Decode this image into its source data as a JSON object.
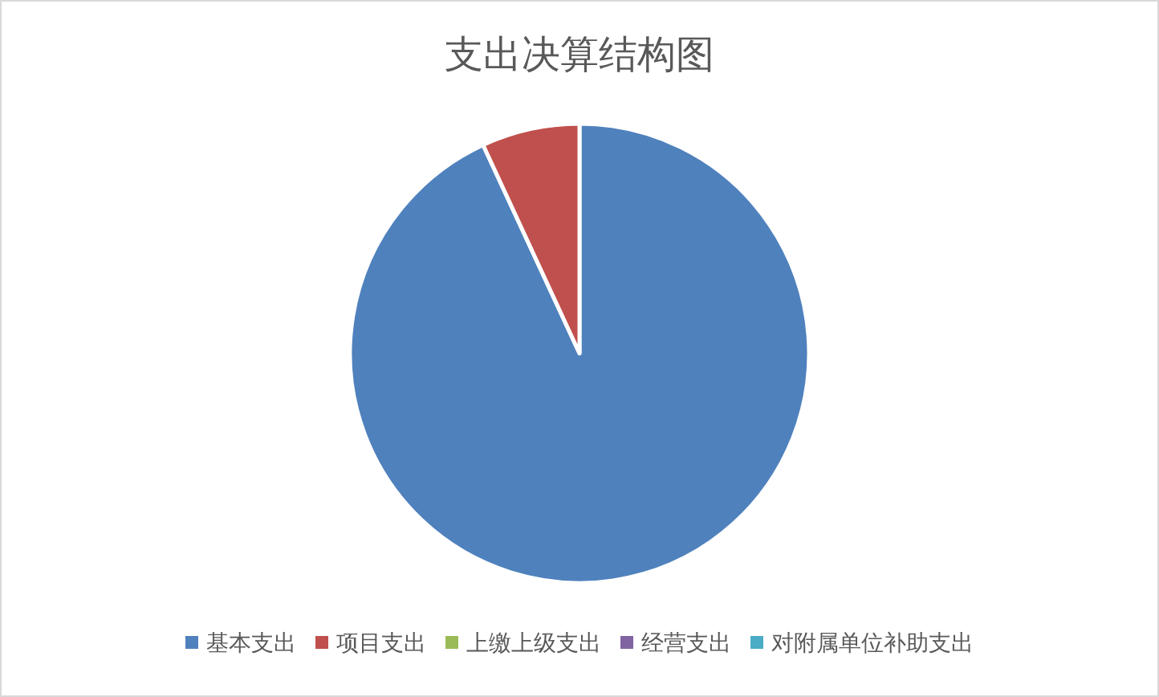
{
  "chart_data": {
    "type": "pie",
    "title": "支出决算结构图",
    "categories": [
      "基本支出",
      "项目支出",
      "上缴上级支出",
      "经营支出",
      "对附属单位补助支出"
    ],
    "values": [
      93.1,
      6.9,
      0,
      0,
      0
    ],
    "colors": [
      "#4f81bd",
      "#c0504d",
      "#9bbb59",
      "#8064a2",
      "#4bacc6"
    ],
    "legend": "bottom"
  }
}
